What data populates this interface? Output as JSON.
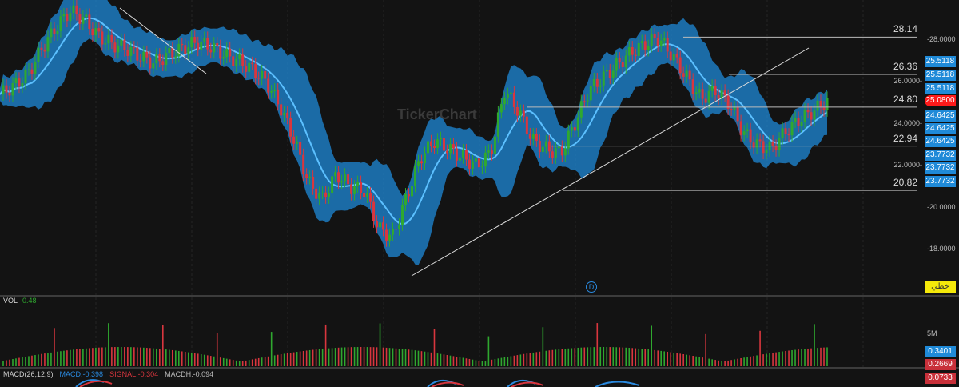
{
  "chart_data": {
    "type": "candlestick",
    "indicators": [
      "bollinger-bands",
      "moving-average"
    ],
    "y_axis_ticks": [
      "28.0000",
      "26.0000",
      "24.0000",
      "22.0000",
      "20.0000",
      "18.0000"
    ],
    "ylim": [
      16.6,
      30.0
    ],
    "closes": [
      25.4,
      25.8,
      26.4,
      27.6,
      28.6,
      29.4,
      29.0,
      28.2,
      27.8,
      27.6,
      27.2,
      26.9,
      27.3,
      27.6,
      27.9,
      27.7,
      27.3,
      27.0,
      26.6,
      26.0,
      24.8,
      23.2,
      21.2,
      20.4,
      21.6,
      21.0,
      20.8,
      19.0,
      18.6,
      20.5,
      22.4,
      23.2,
      22.8,
      22.4,
      22.0,
      22.6,
      25.6,
      24.6,
      23.2,
      22.8,
      22.6,
      24.0,
      25.6,
      26.2,
      26.8,
      27.4,
      27.8,
      28.1,
      27.2,
      26.2,
      25.2,
      25.6,
      25.0,
      23.6,
      23.0,
      22.8,
      23.6,
      24.2,
      24.6,
      25.08
    ],
    "levels": [
      28.14,
      26.36,
      24.8,
      22.94,
      20.82
    ],
    "price_tags": {
      "blue": [
        "25.5118",
        "25.5118",
        "25.5118",
        "24.6425",
        "24.6425",
        "24.6425",
        "23.7732",
        "23.7732",
        "23.7732"
      ],
      "last": "25.0800"
    },
    "watermark": "TickerChart",
    "marker": "D",
    "line_tag": "خطي"
  },
  "volume": {
    "label": "VOL",
    "value": "0.48",
    "axis": "5M"
  },
  "macd": {
    "label": "MACD(26,12,9)",
    "macd": "MACD:-0.398",
    "signal": "SIGNAL:-0.304",
    "macdh": "MACDH:-0.094",
    "tags": [
      "0.3401",
      "0.2669",
      "0.0733"
    ]
  },
  "colors": {
    "up": "#2fa82f",
    "down": "#d9363e",
    "band": "#1f8ad8",
    "accent": "#ff1a1a"
  }
}
